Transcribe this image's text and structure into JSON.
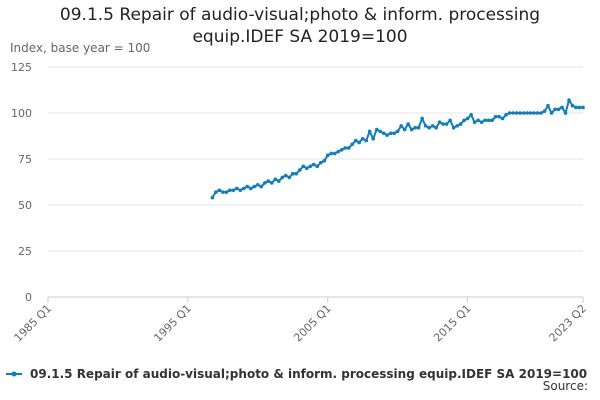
{
  "chart_data": {
    "type": "line",
    "title": "09.1.5 Repair of audio-visual;photo & inform. processing equip.IDEF SA 2019=100",
    "y_label": "Index, base year = 100",
    "source": "Source:",
    "xticks": [
      "1985 Q1",
      "1995 Q1",
      "2005 Q1",
      "2015 Q1",
      "2023 Q2"
    ],
    "ylim": [
      0,
      125
    ],
    "yticks": [
      0,
      25,
      50,
      75,
      100,
      125
    ],
    "grid": true,
    "legend": "bottom",
    "x": [
      "1996 Q4",
      "1997 Q1",
      "1997 Q2",
      "1997 Q3",
      "1997 Q4",
      "1998 Q1",
      "1998 Q2",
      "1998 Q3",
      "1998 Q4",
      "1999 Q1",
      "1999 Q2",
      "1999 Q3",
      "1999 Q4",
      "2000 Q1",
      "2000 Q2",
      "2000 Q3",
      "2000 Q4",
      "2001 Q1",
      "2001 Q2",
      "2001 Q3",
      "2001 Q4",
      "2002 Q1",
      "2002 Q2",
      "2002 Q3",
      "2002 Q4",
      "2003 Q1",
      "2003 Q2",
      "2003 Q3",
      "2003 Q4",
      "2004 Q1",
      "2004 Q2",
      "2004 Q3",
      "2004 Q4",
      "2005 Q1",
      "2005 Q2",
      "2005 Q3",
      "2005 Q4",
      "2006 Q1",
      "2006 Q2",
      "2006 Q3",
      "2006 Q4",
      "2007 Q1",
      "2007 Q2",
      "2007 Q3",
      "2007 Q4",
      "2008 Q1",
      "2008 Q2",
      "2008 Q3",
      "2008 Q4",
      "2009 Q1",
      "2009 Q2",
      "2009 Q3",
      "2009 Q4",
      "2010 Q1",
      "2010 Q2",
      "2010 Q3",
      "2010 Q4",
      "2011 Q1",
      "2011 Q2",
      "2011 Q3",
      "2011 Q4",
      "2012 Q1",
      "2012 Q2",
      "2012 Q3",
      "2012 Q4",
      "2013 Q1",
      "2013 Q2",
      "2013 Q3",
      "2013 Q4",
      "2014 Q1",
      "2014 Q2",
      "2014 Q3",
      "2014 Q4",
      "2015 Q1",
      "2015 Q2",
      "2015 Q3",
      "2015 Q4",
      "2016 Q1",
      "2016 Q2",
      "2016 Q3",
      "2016 Q4",
      "2017 Q1",
      "2017 Q2",
      "2017 Q3",
      "2017 Q4",
      "2018 Q1",
      "2018 Q2",
      "2018 Q3",
      "2018 Q4",
      "2019 Q1",
      "2019 Q2",
      "2019 Q3",
      "2019 Q4",
      "2020 Q1",
      "2020 Q2",
      "2020 Q3",
      "2020 Q4",
      "2021 Q1",
      "2021 Q2",
      "2021 Q3",
      "2021 Q4",
      "2022 Q1",
      "2022 Q2",
      "2022 Q3",
      "2022 Q4",
      "2023 Q1",
      "2023 Q2"
    ],
    "series": [
      {
        "name": "09.1.5 Repair of audio-visual;photo & inform. processing equip.IDEF SA 2019=100",
        "color": "#0f7dc2",
        "values": [
          54,
          57,
          58,
          57,
          57,
          58,
          58,
          59,
          58,
          59,
          60,
          59,
          60,
          61,
          60,
          62,
          63,
          62,
          64,
          63,
          65,
          66,
          65,
          67,
          67,
          69,
          71,
          70,
          71,
          72,
          71,
          73,
          74,
          77,
          78,
          78,
          79,
          80,
          81,
          81,
          83,
          85,
          84,
          86,
          85,
          90,
          86,
          91,
          90,
          89,
          88,
          89,
          89,
          90,
          93,
          91,
          94,
          91,
          92,
          92,
          97,
          93,
          92,
          93,
          92,
          95,
          94,
          94,
          96,
          92,
          93,
          94,
          96,
          97,
          99,
          95,
          96,
          95,
          96,
          96,
          96,
          98,
          98,
          97,
          99,
          100,
          100,
          100,
          100,
          100,
          100,
          100,
          100,
          100,
          100,
          101,
          104,
          100,
          102,
          102,
          103,
          100,
          107,
          104,
          103,
          103,
          103
        ]
      }
    ]
  }
}
